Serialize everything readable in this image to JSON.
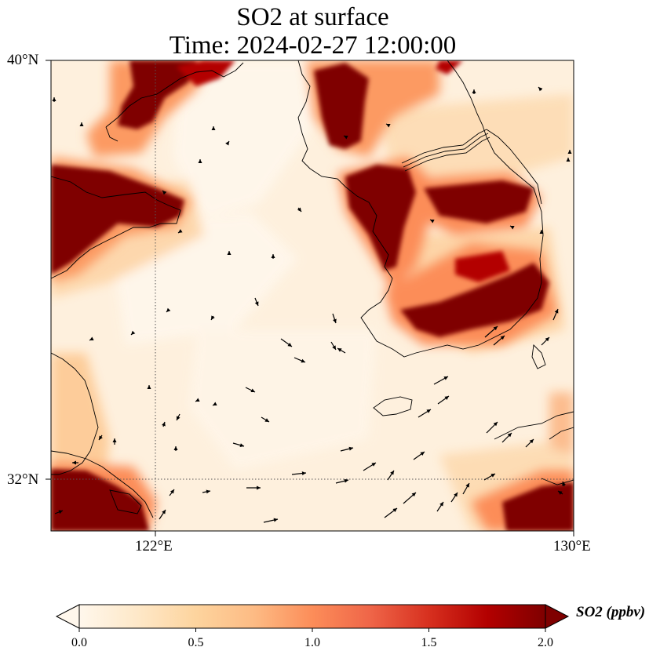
{
  "title": {
    "line1": "SO2 at surface",
    "line2": "Time: 2024-02-27 12:00:00"
  },
  "map": {
    "lat_labels": [
      "40°N",
      "32°N"
    ],
    "lon_labels": [
      "122°E",
      "130°E"
    ],
    "lat_range": [
      31,
      40
    ],
    "lon_range": [
      120,
      130
    ],
    "gridlines": {
      "lat": 32,
      "lon": 122,
      "style": "dotted"
    },
    "colormap": "OrRd",
    "field_regions": [
      {
        "name": "shandong-peninsula-plume",
        "level": "high"
      },
      {
        "name": "liaodong-plume",
        "level": "high"
      },
      {
        "name": "seoul-incheon-plume",
        "level": "high"
      },
      {
        "name": "pyongyang-plume",
        "level": "high"
      },
      {
        "name": "south-korea-southwest-plume",
        "level": "high"
      },
      {
        "name": "busan-gyeongsang-plume",
        "level": "high"
      },
      {
        "name": "east-china-south-plume",
        "level": "high"
      },
      {
        "name": "kyushu-plume",
        "level": "high"
      }
    ],
    "wind_vectors_shown": true
  },
  "colorbar": {
    "ticks": [
      "0.0",
      "0.5",
      "1.0",
      "1.5",
      "2.0"
    ],
    "range": [
      0.0,
      2.0
    ],
    "extend": "both",
    "label": "SO2 (ppbv)"
  }
}
